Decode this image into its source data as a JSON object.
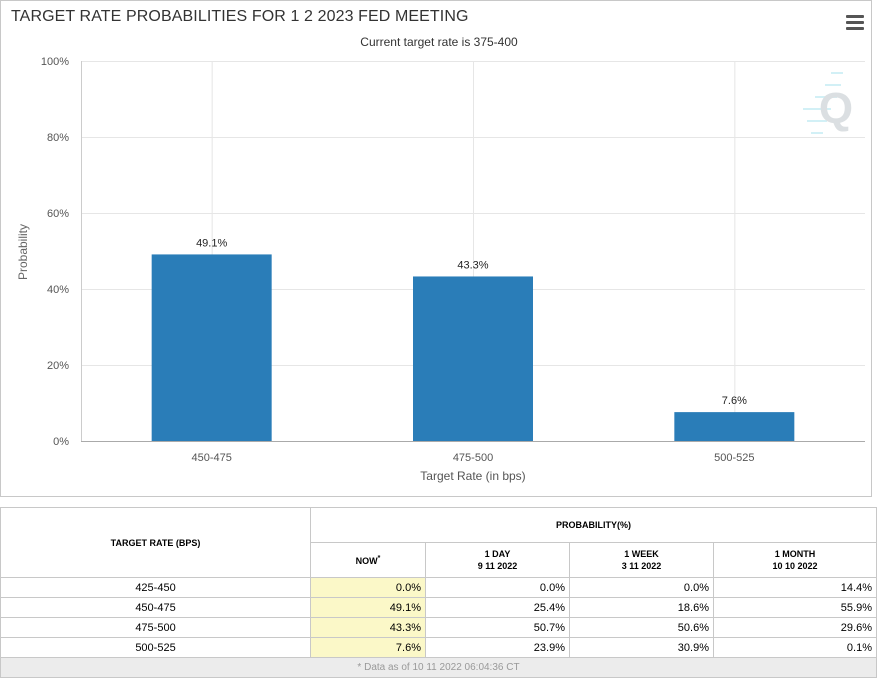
{
  "chart": {
    "title": "TARGET RATE PROBABILITIES FOR 1 2 2023 FED MEETING",
    "subtitle": "Current target rate is 375-400",
    "menu_icon": "hamburger-menu-icon",
    "watermark_icon": "q-logo-icon",
    "bar_color": "#2a7db8"
  },
  "chart_data": {
    "type": "bar",
    "title": "TARGET RATE PROBABILITIES FOR 1 2 2023 FED MEETING",
    "subtitle": "Current target rate is 375-400",
    "categories": [
      "450-475",
      "475-500",
      "500-525"
    ],
    "values": [
      49.1,
      43.3,
      7.6
    ],
    "data_labels": [
      "49.1%",
      "43.3%",
      "7.6%"
    ],
    "xlabel": "Target Rate (in bps)",
    "ylabel": "Probability",
    "ylim": [
      0,
      100
    ],
    "yticks": [
      0,
      20,
      40,
      60,
      80,
      100
    ],
    "ytick_labels": [
      "0%",
      "20%",
      "40%",
      "60%",
      "80%",
      "100%"
    ],
    "grid": true,
    "legend": "none"
  },
  "table": {
    "rate_header": "TARGET RATE (BPS)",
    "prob_header": "PROBABILITY(%)",
    "now_header": "NOW",
    "now_marker": "*",
    "day_header": "1 DAY",
    "day_date": "9 11 2022",
    "week_header": "1 WEEK",
    "week_date": "3 11 2022",
    "month_header": "1 MONTH",
    "month_date": "10 10 2022",
    "rows": [
      {
        "rate": "425-450",
        "now": "0.0%",
        "day": "0.0%",
        "week": "0.0%",
        "month": "14.4%"
      },
      {
        "rate": "450-475",
        "now": "49.1%",
        "day": "25.4%",
        "week": "18.6%",
        "month": "55.9%"
      },
      {
        "rate": "475-500",
        "now": "43.3%",
        "day": "50.7%",
        "week": "50.6%",
        "month": "29.6%"
      },
      {
        "rate": "500-525",
        "now": "7.6%",
        "day": "23.9%",
        "week": "30.9%",
        "month": "0.1%"
      }
    ],
    "footnote": "* Data as of 10 11 2022 06:04:36 CT"
  }
}
